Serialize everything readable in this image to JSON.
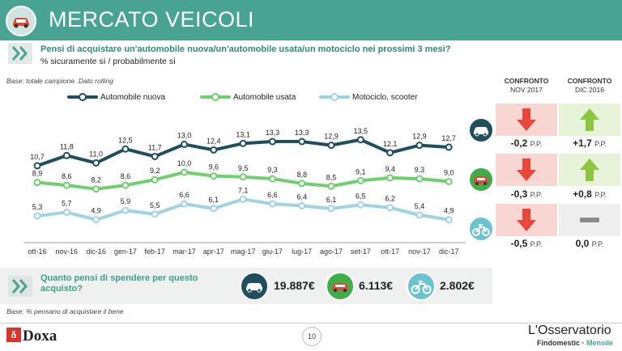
{
  "header": {
    "title": "MERCATO VEICOLI",
    "icon": "car-icon"
  },
  "question": {
    "text": "Pensi di acquistare un'automobile nuova/un'automobile usata/un motociclo nei prossimi 3 mesi?",
    "subtext": "% sicuramente sì / probabilmente sì"
  },
  "base_note": "Base: totale campione. Dato rolling",
  "base_note_bottom": "Base: % pensano di acquistare il bene",
  "chart_data": {
    "type": "line",
    "categories": [
      "ott-16",
      "nov-16",
      "dic-16",
      "gen-17",
      "feb-17",
      "mar-17",
      "apr-17",
      "mag-17",
      "giu-17",
      "lug-17",
      "ago-17",
      "set-17",
      "ott-17",
      "nov-17",
      "dic-17"
    ],
    "series": [
      {
        "name": "Automobile nuova",
        "color": "#1f4e5f",
        "values": [
          10.7,
          11.8,
          11.0,
          12.5,
          11.7,
          13.0,
          12.4,
          13.1,
          13.3,
          13.3,
          12.9,
          13.5,
          12.1,
          12.9,
          12.7
        ],
        "labels": [
          "10,7",
          "11,8",
          "11,0",
          "12,5",
          "11,7",
          "13,0",
          "12,4",
          "13,1",
          "13,3",
          "13,3",
          "12,9",
          "13,5",
          "12,1",
          "12,9",
          "12,7"
        ]
      },
      {
        "name": "Automobile usata",
        "color": "#6fcf6f",
        "values": [
          8.9,
          8.6,
          8.2,
          8.6,
          9.2,
          10.0,
          9.6,
          9.5,
          9.3,
          8.8,
          8.5,
          9.1,
          9.4,
          9.3,
          9.0
        ],
        "labels": [
          "8,9",
          "8,6",
          "8,2",
          "8,6",
          "9,2",
          "10,0",
          "9,6",
          "9,5",
          "9,3",
          "8,8",
          "8,5",
          "9,1",
          "9,4",
          "9,3",
          "9,0"
        ]
      },
      {
        "name": "Motociclo, scooter",
        "color": "#9fd3e3",
        "values": [
          5.3,
          5.7,
          4.9,
          5.9,
          5.5,
          6.6,
          6.1,
          7.1,
          6.6,
          6.4,
          6.1,
          6.5,
          6.2,
          5.4,
          4.9
        ],
        "labels": [
          "5,3",
          "5,7",
          "4,9",
          "5,9",
          "5,5",
          "6,6",
          "6,1",
          "7,1",
          "6,6",
          "6,4",
          "6,1",
          "6,5",
          "6,2",
          "5,4",
          "4,9"
        ]
      }
    ],
    "ylim": [
      4,
      14
    ]
  },
  "comparison": {
    "headers": [
      {
        "title": "CONFRONTO",
        "sub": "NOV 2017"
      },
      {
        "title": "CONFRONTO",
        "sub": "DIC 2016"
      }
    ],
    "rows": [
      {
        "icon": "car-icon",
        "cells": [
          {
            "direction": "down",
            "value": "-0,2",
            "unit": "P.P."
          },
          {
            "direction": "up",
            "value": "+1,7",
            "unit": "P.P."
          }
        ]
      },
      {
        "icon": "used-car-icon",
        "cells": [
          {
            "direction": "down",
            "value": "-0,3",
            "unit": "P.P."
          },
          {
            "direction": "up",
            "value": "+0,8",
            "unit": "P.P."
          }
        ]
      },
      {
        "icon": "motorcycle-icon",
        "cells": [
          {
            "direction": "down",
            "value": "-0,5",
            "unit": "P.P."
          },
          {
            "direction": "flat",
            "value": "0,0",
            "unit": "P.P."
          }
        ]
      }
    ],
    "colors": {
      "down_bg": "#f8d7d3",
      "down_arrow": "#e8473a",
      "up_bg": "#e6f3d8",
      "up_arrow": "#8cc63f",
      "flat_bg": "#eeeeee",
      "flat_bar": "#8a8a8a"
    }
  },
  "spend": {
    "question": "Quanto pensi di spendere per questo acquisto?",
    "items": [
      {
        "icon": "car-icon",
        "value": "19.887€"
      },
      {
        "icon": "used-car-icon",
        "value": "6.113€"
      },
      {
        "icon": "motorcycle-icon",
        "value": "2.802€"
      }
    ]
  },
  "footer": {
    "logo": "Doxa",
    "page_number": "10",
    "brand_title": "L'Osservatorio",
    "brand_sub_a": "Findomestic",
    "brand_sub_sep": " · ",
    "brand_sub_b": "Mensile"
  },
  "colors": {
    "accent": "#49a393",
    "icon_circle_dark": "#1f4e5f",
    "icon_circle_green": "#3fae49",
    "icon_circle_light": "#6cc3cf"
  }
}
